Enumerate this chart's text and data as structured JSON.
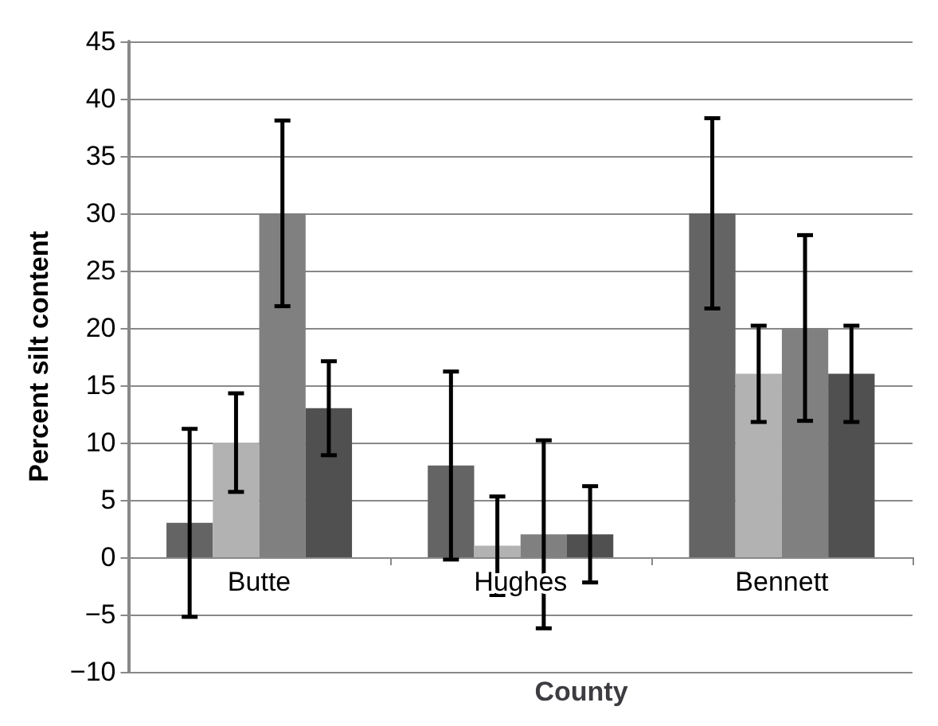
{
  "chart_data": {
    "type": "bar",
    "xlabel": "County",
    "ylabel": "Percent silt content",
    "categories": [
      "Butte",
      "Hughes",
      "Bennett"
    ],
    "series": [
      {
        "color": "#646464",
        "values": [
          3,
          8,
          30
        ],
        "errors": [
          8.2,
          8.2,
          8.3
        ]
      },
      {
        "color": "#b2b2b2",
        "values": [
          10,
          1,
          16
        ],
        "errors": [
          4.3,
          4.3,
          4.2
        ]
      },
      {
        "color": "#808080",
        "values": [
          30,
          2,
          20
        ],
        "errors": [
          8.1,
          8.2,
          8.1
        ]
      },
      {
        "color": "#505050",
        "values": [
          13,
          2,
          16
        ],
        "errors": [
          4.1,
          4.2,
          4.2
        ]
      }
    ],
    "ylim": [
      -10,
      45
    ],
    "yticks": [
      -10,
      -5,
      0,
      5,
      10,
      15,
      20,
      25,
      30,
      35,
      40,
      45
    ],
    "grid": "y"
  }
}
